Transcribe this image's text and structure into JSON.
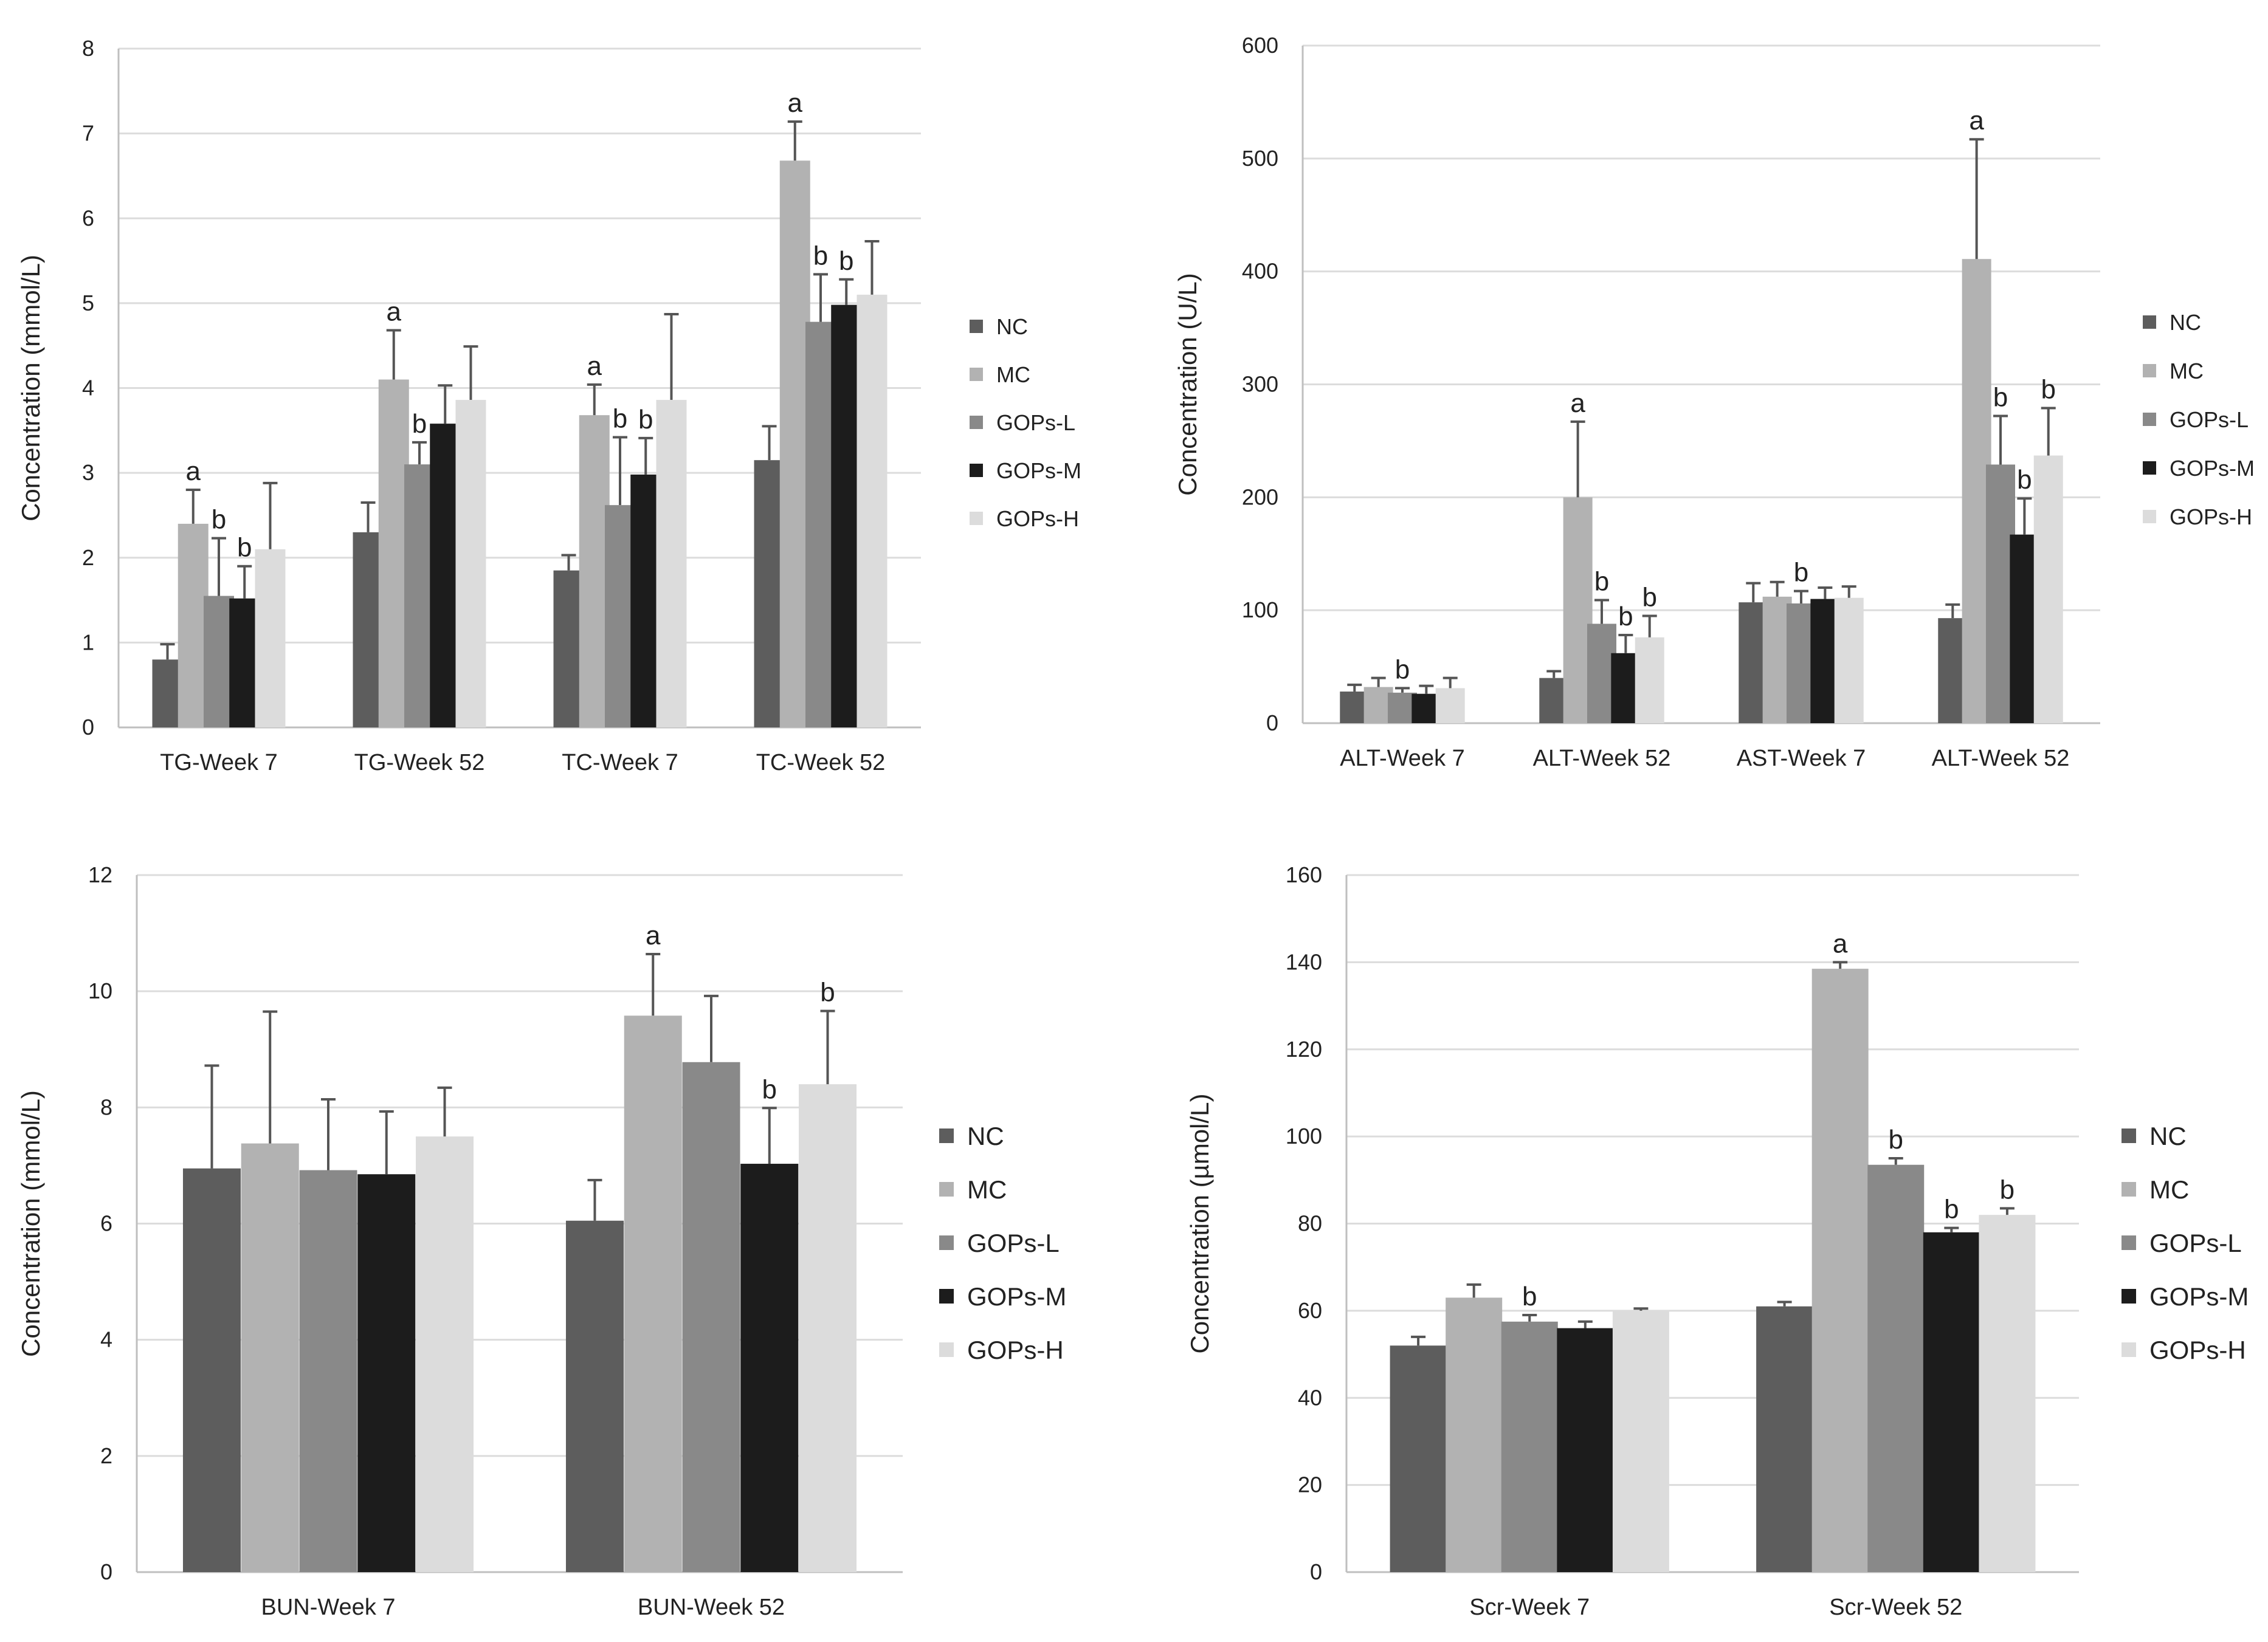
{
  "colors": {
    "NC": "#5d5d5d",
    "MC": "#b2b2b2",
    "GOPs-L": "#898989",
    "GOPs-M": "#1c1c1c",
    "GOPs-H": "#dcdcdc"
  },
  "chart_data": [
    {
      "type": "bar",
      "ylabel": "Concentration (mmol/L)",
      "ylim": [
        0,
        8
      ],
      "yticks": [
        0,
        1,
        2,
        3,
        4,
        5,
        6,
        7,
        8
      ],
      "legend_position": "right",
      "categories": [
        "TG-Week 7",
        "TG-Week 52",
        "TC-Week 7",
        "TC-Week 52"
      ],
      "series": [
        {
          "name": "NC",
          "values": [
            0.8,
            2.3,
            1.85,
            3.15
          ],
          "errors": [
            0.18,
            0.35,
            0.18,
            0.4
          ],
          "sig": [
            "",
            "",
            "",
            ""
          ]
        },
        {
          "name": "MC",
          "values": [
            2.4,
            4.1,
            3.68,
            6.68
          ],
          "errors": [
            0.4,
            0.58,
            0.36,
            0.46
          ],
          "sig": [
            "a",
            "a",
            "a",
            "a"
          ]
        },
        {
          "name": "GOPs-L",
          "values": [
            1.55,
            3.1,
            2.62,
            4.78
          ],
          "errors": [
            0.68,
            0.26,
            0.8,
            0.56
          ],
          "sig": [
            "b",
            "b",
            "b",
            "b"
          ]
        },
        {
          "name": "GOPs-M",
          "values": [
            1.52,
            3.58,
            2.98,
            4.98
          ],
          "errors": [
            0.38,
            0.45,
            0.43,
            0.3
          ],
          "sig": [
            "b",
            "",
            "b",
            "b"
          ]
        },
        {
          "name": "GOPs-H",
          "values": [
            2.1,
            3.86,
            3.86,
            5.1
          ],
          "errors": [
            0.78,
            0.63,
            1.01,
            0.63
          ],
          "sig": [
            "",
            "",
            "",
            ""
          ]
        }
      ]
    },
    {
      "type": "bar",
      "ylabel": "Concentration (U/L)",
      "ylim": [
        0,
        600
      ],
      "yticks": [
        0,
        100,
        200,
        300,
        400,
        500,
        600
      ],
      "legend_position": "right",
      "categories": [
        "ALT-Week  7",
        "ALT-Week 52",
        "AST-Week 7",
        "ALT-Week 52"
      ],
      "series": [
        {
          "name": "NC",
          "values": [
            28,
            40,
            107,
            93
          ],
          "errors": [
            6,
            6,
            17,
            12
          ],
          "sig": [
            "",
            "",
            "",
            ""
          ]
        },
        {
          "name": "MC",
          "values": [
            32,
            200,
            112,
            411
          ],
          "errors": [
            8,
            67,
            13,
            106
          ],
          "sig": [
            "",
            "a",
            "",
            "a"
          ]
        },
        {
          "name": "GOPs-L",
          "values": [
            27,
            88,
            106,
            229
          ],
          "errors": [
            4,
            21,
            11,
            43
          ],
          "sig": [
            "b",
            "b",
            "b",
            "b"
          ]
        },
        {
          "name": "GOPs-M",
          "values": [
            26,
            62,
            110,
            167
          ],
          "errors": [
            7,
            16,
            10,
            32
          ],
          "sig": [
            "",
            "b",
            "",
            "b"
          ]
        },
        {
          "name": "GOPs-H",
          "values": [
            31,
            76,
            111,
            237
          ],
          "errors": [
            9,
            19,
            10,
            42
          ],
          "sig": [
            "",
            "b",
            "",
            "b"
          ]
        }
      ]
    },
    {
      "type": "bar",
      "ylabel": "Concentration (mmol/L)",
      "ylim": [
        0,
        12
      ],
      "yticks": [
        0,
        2,
        4,
        6,
        8,
        10,
        12
      ],
      "legend_position": "right",
      "categories": [
        "BUN-Week 7",
        "BUN-Week 52"
      ],
      "series": [
        {
          "name": "NC",
          "values": [
            6.95,
            6.05
          ],
          "errors": [
            1.77,
            0.7
          ],
          "sig": [
            "",
            ""
          ]
        },
        {
          "name": "MC",
          "values": [
            7.38,
            9.58
          ],
          "errors": [
            2.27,
            1.06
          ],
          "sig": [
            "",
            "a"
          ]
        },
        {
          "name": "GOPs-L",
          "values": [
            6.92,
            8.78
          ],
          "errors": [
            1.22,
            1.14
          ],
          "sig": [
            "",
            ""
          ]
        },
        {
          "name": "GOPs-M",
          "values": [
            6.85,
            7.03
          ],
          "errors": [
            1.08,
            0.96
          ],
          "sig": [
            "",
            "b"
          ]
        },
        {
          "name": "GOPs-H",
          "values": [
            7.5,
            8.4
          ],
          "errors": [
            0.84,
            1.26
          ],
          "sig": [
            "",
            "b"
          ]
        }
      ]
    },
    {
      "type": "bar",
      "ylabel": "Concentration (µmol/L)",
      "ylim": [
        0,
        160
      ],
      "yticks": [
        0,
        20,
        40,
        60,
        80,
        100,
        120,
        140,
        160
      ],
      "legend_position": "right",
      "categories": [
        "Scr-Week 7",
        "Scr-Week 52"
      ],
      "series": [
        {
          "name": "NC",
          "values": [
            52,
            61
          ],
          "errors": [
            2,
            1
          ],
          "sig": [
            "",
            ""
          ]
        },
        {
          "name": "MC",
          "values": [
            63,
            138.5
          ],
          "errors": [
            3,
            1.5
          ],
          "sig": [
            "",
            "a"
          ]
        },
        {
          "name": "GOPs-L",
          "values": [
            57.5,
            93.5
          ],
          "errors": [
            1.5,
            1.5
          ],
          "sig": [
            "b",
            "b"
          ]
        },
        {
          "name": "GOPs-M",
          "values": [
            56,
            78
          ],
          "errors": [
            1.5,
            1
          ],
          "sig": [
            "",
            "b"
          ]
        },
        {
          "name": "GOPs-H",
          "values": [
            60,
            82
          ],
          "errors": [
            0.5,
            1.5
          ],
          "sig": [
            "",
            "b"
          ]
        }
      ]
    }
  ]
}
